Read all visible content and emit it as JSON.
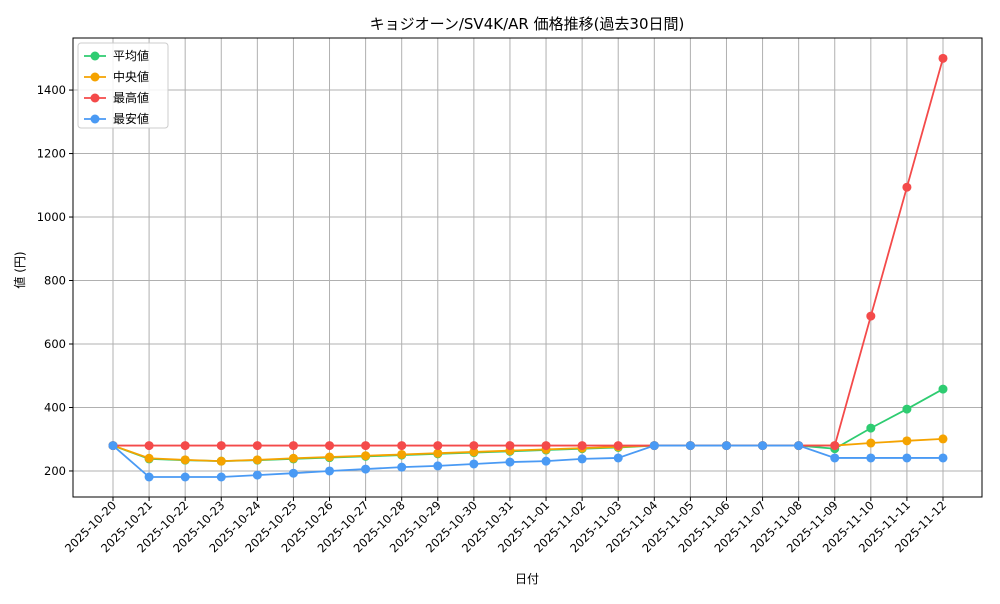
{
  "chart_data": {
    "type": "line",
    "title": "キョジオーン/SV4K/AR 価格推移(過去30日間)",
    "xlabel": "日付",
    "ylabel": "値 (円)",
    "ylim": [
      118,
      1564
    ],
    "yticks": [
      200,
      400,
      600,
      800,
      1000,
      1200,
      1400
    ],
    "grid": true,
    "legend_position": "top-left",
    "x": [
      "2025-10-20",
      "2025-10-21",
      "2025-10-22",
      "2025-10-23",
      "2025-10-24",
      "2025-10-25",
      "2025-10-26",
      "2025-10-27",
      "2025-10-28",
      "2025-10-29",
      "2025-10-30",
      "2025-10-31",
      "2025-11-01",
      "2025-11-02",
      "2025-11-03",
      "2025-11-04",
      "2025-11-05",
      "2025-11-06",
      "2025-11-07",
      "2025-11-08",
      "2025-11-09",
      "2025-11-10",
      "2025-11-11",
      "2025-11-12"
    ],
    "series": [
      {
        "name": "平均値",
        "color": "#2ecc71",
        "values": [
          280,
          238,
          234,
          231,
          234,
          238,
          242,
          246,
          250,
          254,
          258,
          262,
          266,
          270,
          274,
          280,
          280,
          280,
          280,
          280,
          270,
          335,
          395,
          458
        ]
      },
      {
        "name": "中央値",
        "color": "#f5a300",
        "values": [
          280,
          240,
          235,
          231,
          235,
          240,
          244,
          248,
          252,
          256,
          260,
          264,
          268,
          272,
          276,
          280,
          280,
          280,
          280,
          280,
          280,
          288,
          295,
          301
        ]
      },
      {
        "name": "最高値",
        "color": "#f44a4a",
        "values": [
          280,
          280,
          280,
          280,
          280,
          280,
          280,
          280,
          280,
          280,
          280,
          280,
          280,
          280,
          280,
          280,
          280,
          280,
          280,
          280,
          280,
          688,
          1094,
          1500
        ]
      },
      {
        "name": "最安値",
        "color": "#4a9af4",
        "values": [
          280,
          181,
          181,
          181,
          187,
          193,
          200,
          206,
          212,
          216,
          222,
          228,
          231,
          238,
          241,
          280,
          280,
          280,
          280,
          280,
          241,
          241,
          241,
          241
        ]
      }
    ]
  }
}
